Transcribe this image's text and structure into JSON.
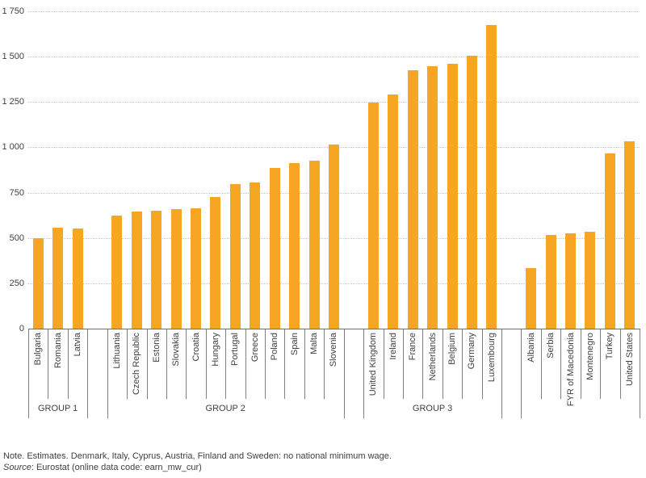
{
  "chart_data": {
    "type": "bar",
    "title": "",
    "xlabel": "",
    "ylabel": "",
    "ylim": [
      0,
      1750
    ],
    "grid": true,
    "legend_position": "none",
    "yticks": [
      0,
      250,
      500,
      750,
      1000,
      1250,
      1500,
      1750
    ],
    "ytick_labels": [
      "0",
      "250",
      "500",
      "750",
      "1 000",
      "1 250",
      "1 500",
      "1 750"
    ],
    "bar_color": "#f6a623",
    "gridline_color": "#c8c8c8",
    "axis_color": "#6e6e6e",
    "separator_color": "#808080",
    "groups": [
      {
        "label": "GROUP 1",
        "countries": [
          "Bulgaria",
          "Romania",
          "Latvia"
        ],
        "values": [
          500,
          555,
          550
        ]
      },
      {
        "label": "GROUP 2",
        "countries": [
          "Lithuania",
          "Czech Republic",
          "Estonia",
          "Slovakia",
          "Croatia",
          "Hungary",
          "Portugal",
          "Greece",
          "Poland",
          "Spain",
          "Malta",
          "Slovenia"
        ],
        "values": [
          625,
          645,
          650,
          660,
          665,
          725,
          795,
          805,
          885,
          915,
          925,
          1015
        ]
      },
      {
        "label": "GROUP 3",
        "countries": [
          "United Kingdom",
          "Ireland",
          "France",
          "Netherlands",
          "Belgium",
          "Germany",
          "Luxembourg"
        ],
        "values": [
          1245,
          1290,
          1425,
          1445,
          1460,
          1505,
          1675
        ]
      },
      {
        "label": "",
        "countries": [
          "Albania",
          "Serbia",
          "FYR of Macedonia",
          "Montenegro",
          "Turkey",
          "United States"
        ],
        "values": [
          335,
          515,
          525,
          535,
          965,
          1035
        ]
      }
    ]
  },
  "notes": {
    "line1": "Note. Estimates. Denmark, Italy, Cyprus, Austria, Finland and Sweden: no national minimum wage.",
    "source_label": "Source",
    "source_rest": ": Eurostat (online data code: earn_mw_cur)"
  }
}
